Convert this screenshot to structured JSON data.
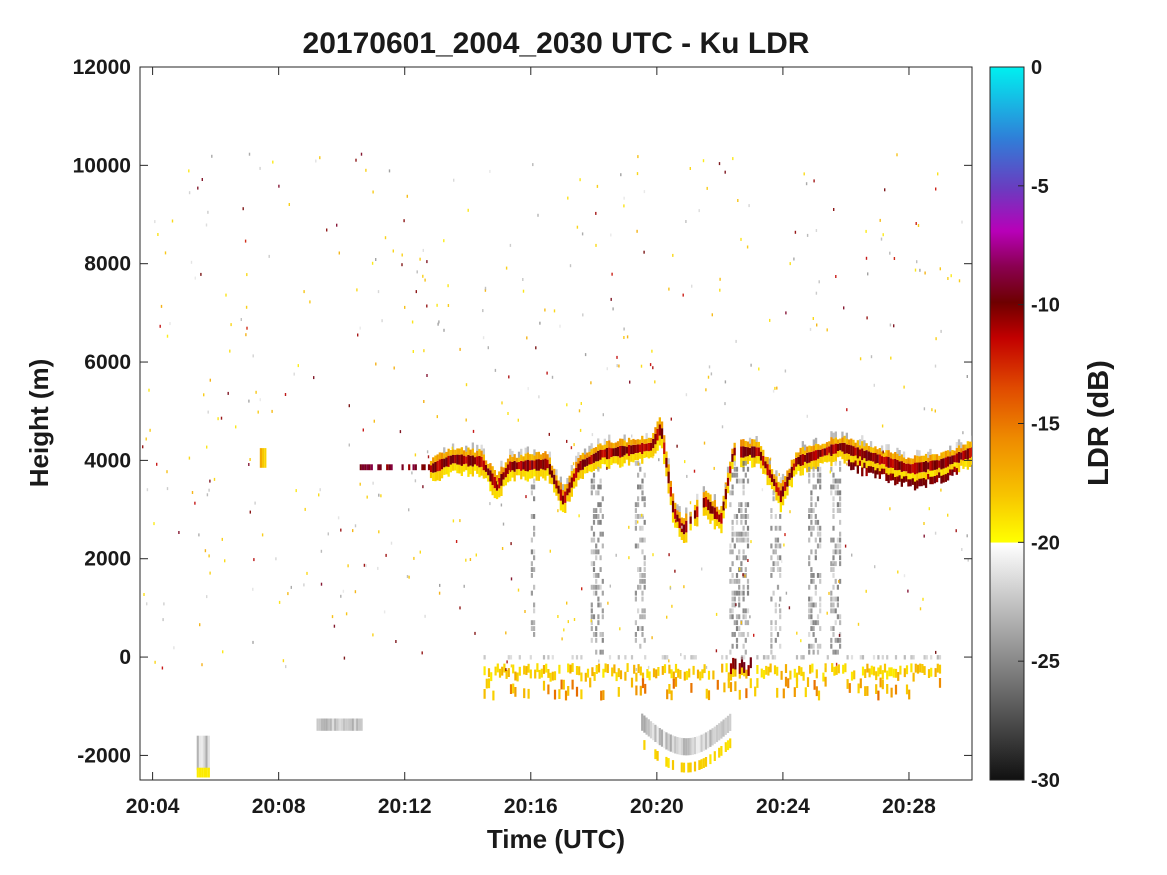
{
  "chart_data": {
    "type": "heatmap",
    "title": "20170601_2004_2030 UTC - Ku LDR",
    "xlabel": "Time (UTC)",
    "ylabel": "Height (m)",
    "x_ticks": [
      "20:04",
      "20:08",
      "20:12",
      "20:16",
      "20:20",
      "20:24",
      "20:28"
    ],
    "y_ticks": [
      12000,
      10000,
      8000,
      6000,
      4000,
      2000,
      0,
      -2000
    ],
    "ylim": [
      -2500,
      12000
    ],
    "xlim_minutes": [
      3.6,
      30.0
    ],
    "colorbar": {
      "label": "LDR (dB)",
      "range": [
        -30,
        0
      ],
      "ticks": [
        0,
        -5,
        -10,
        -15,
        -20,
        -25,
        -30
      ],
      "colors": {
        "grayscale_low": [
          "#111111",
          "#ffffff"
        ],
        "warm": [
          "#ffff00",
          "#f5a500",
          "#e85a00",
          "#c20000",
          "#6e0000",
          "#a0005a",
          "#c000c0",
          "#6a3cc0",
          "#2f7fd8",
          "#00f0f0"
        ]
      }
    },
    "features": [
      {
        "name": "melting layer bright band",
        "height_m": 4000,
        "ldr_db": [
          -12,
          -18
        ]
      },
      {
        "name": "ground clutter / mirror",
        "height_m": -500,
        "ldr_db": [
          -18,
          -20
        ]
      },
      {
        "name": "rain columns",
        "height_m": [
          0,
          4000
        ],
        "ldr_db": [
          -22,
          -27
        ]
      }
    ],
    "grid": false,
    "legend": "colorbar right"
  }
}
